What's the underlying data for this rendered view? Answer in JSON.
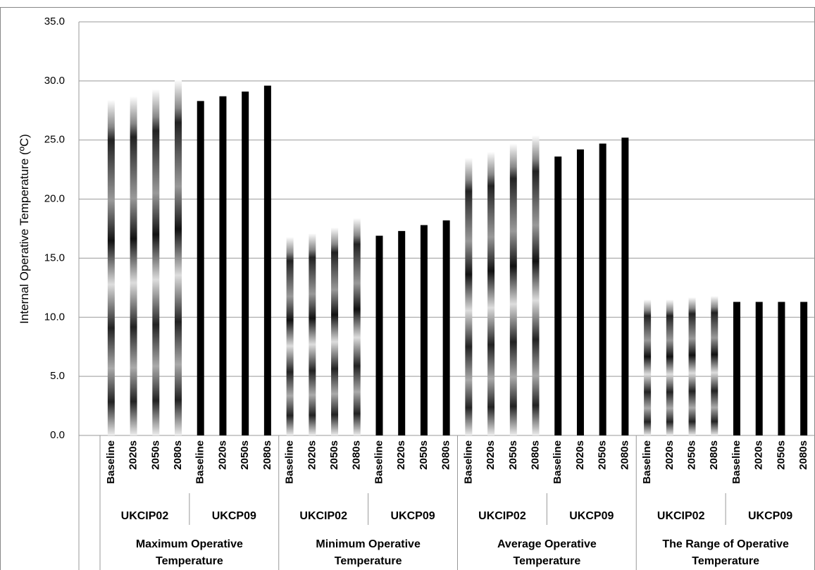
{
  "chart_data": {
    "type": "grouped-bar",
    "y_label": "Internal Operative Temperature (ºC)",
    "ylim": [
      0,
      35
    ],
    "yticks": [
      {
        "value": 0,
        "label": "0.0"
      },
      {
        "value": 5,
        "label": "5.0"
      },
      {
        "value": 10,
        "label": "10.0"
      },
      {
        "value": 15,
        "label": "15.0"
      },
      {
        "value": 20,
        "label": "20.0"
      },
      {
        "value": 25,
        "label": "25.0"
      },
      {
        "value": 30,
        "label": "30.0"
      },
      {
        "value": 35,
        "label": "35.0"
      }
    ],
    "grid": true,
    "categories": [
      "Baseline",
      "2020s",
      "2050s",
      "2080s"
    ],
    "subgroup_fill": [
      "gradient",
      "solid"
    ],
    "bar_color": "#000000",
    "groups": [
      {
        "label": "Maximum Operative Temperature",
        "subgroups": [
          {
            "label": "UKCIP02",
            "values": [
              28.4,
              28.7,
              29.3,
              30.1
            ]
          },
          {
            "label": "UKCP09",
            "values": [
              28.3,
              28.7,
              29.1,
              29.6
            ]
          }
        ]
      },
      {
        "label": "Minimum Operative Temperature",
        "subgroups": [
          {
            "label": "UKCIP02",
            "values": [
              16.8,
              17.1,
              17.6,
              18.4
            ]
          },
          {
            "label": "UKCP09",
            "values": [
              16.9,
              17.3,
              17.8,
              18.2
            ]
          }
        ]
      },
      {
        "label": "Average Operative Temperature",
        "subgroups": [
          {
            "label": "UKCIP02",
            "values": [
              23.5,
              24.0,
              24.7,
              25.4
            ]
          },
          {
            "label": "UKCP09",
            "values": [
              23.6,
              24.2,
              24.7,
              25.2
            ]
          }
        ]
      },
      {
        "label": "The Range of Operative Temperature",
        "subgroups": [
          {
            "label": "UKCIP02",
            "values": [
              11.5,
              11.5,
              11.7,
              11.8
            ]
          },
          {
            "label": "UKCP09",
            "values": [
              11.3,
              11.3,
              11.3,
              11.3
            ]
          }
        ]
      }
    ]
  }
}
